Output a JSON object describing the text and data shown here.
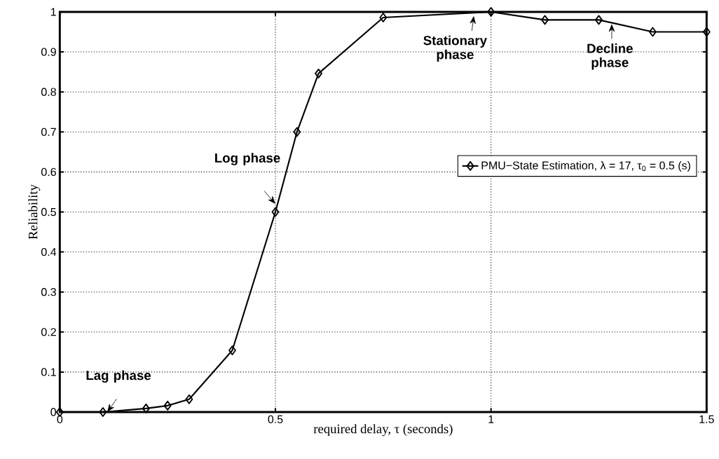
{
  "chart_data": {
    "type": "line",
    "xlabel": "required delay, τ (seconds)",
    "ylabel": "Reliability",
    "x": [
      0,
      0.1,
      0.2,
      0.25,
      0.3,
      0.4,
      0.5,
      0.55,
      0.6,
      0.75,
      1.0,
      1.125,
      1.25,
      1.375,
      1.5
    ],
    "series": [
      {
        "name": "PMU−State Estimation, λ = 17, τ$_{0}$ = 0.5 (s)",
        "color": "#000000",
        "values": [
          0,
          0,
          0.009,
          0.016,
          0.032,
          0.154,
          0.5,
          0.7,
          0.846,
          0.986,
          1.0,
          0.98,
          0.98,
          0.95,
          0.95
        ]
      }
    ],
    "xlim": [
      0,
      1.5
    ],
    "ylim": [
      0,
      1
    ],
    "xticks": [
      0,
      0.5,
      1,
      1.5
    ],
    "yticks": [
      0,
      0.1,
      0.2,
      0.3,
      0.4,
      0.5,
      0.6,
      0.7,
      0.8,
      0.9,
      1
    ],
    "grid": true,
    "legend": "right",
    "marker": "diamond",
    "line_style": "solid",
    "annotations": [
      {
        "text": "Lag phase",
        "x": 0.11,
        "y": 0.0
      },
      {
        "text": "Log phase",
        "x": 0.5,
        "y": 0.52
      },
      {
        "text": "Stationary phase",
        "x": 0.96,
        "y": 0.99
      },
      {
        "text": "Decline phase",
        "x": 1.28,
        "y": 0.97
      }
    ]
  }
}
